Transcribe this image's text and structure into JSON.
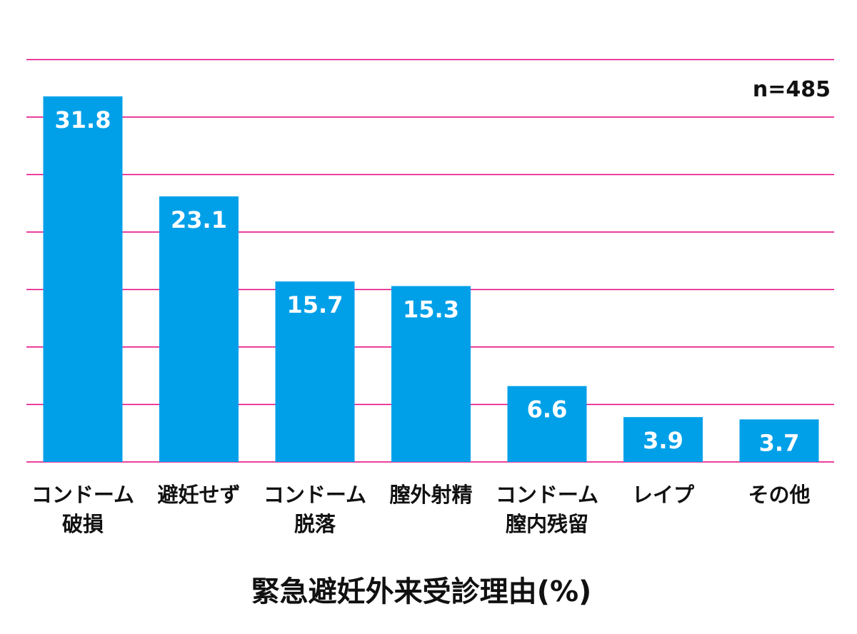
{
  "chart_data": {
    "type": "bar",
    "title": "緊急避妊外来受診理由(%)",
    "annotation": "n=485",
    "categories": [
      [
        "コンドーム",
        "破損"
      ],
      [
        "避妊せず"
      ],
      [
        "コンドーム",
        "脱落"
      ],
      [
        "膣外射精"
      ],
      [
        "コンドーム",
        "膣内残留"
      ],
      [
        "レイプ"
      ],
      [
        "その他"
      ]
    ],
    "values": [
      31.8,
      23.1,
      15.7,
      15.3,
      6.6,
      3.9,
      3.7
    ],
    "data_labels": [
      "31.8",
      "23.1",
      "15.7",
      "15.3",
      "6.6",
      "3.9",
      "3.7"
    ],
    "ylim": [
      0,
      35
    ],
    "grid": true,
    "colors": {
      "bar": "#00a0e9",
      "grid": "#e4007f",
      "bar_label": "#ffffff",
      "text": "#111111"
    }
  }
}
